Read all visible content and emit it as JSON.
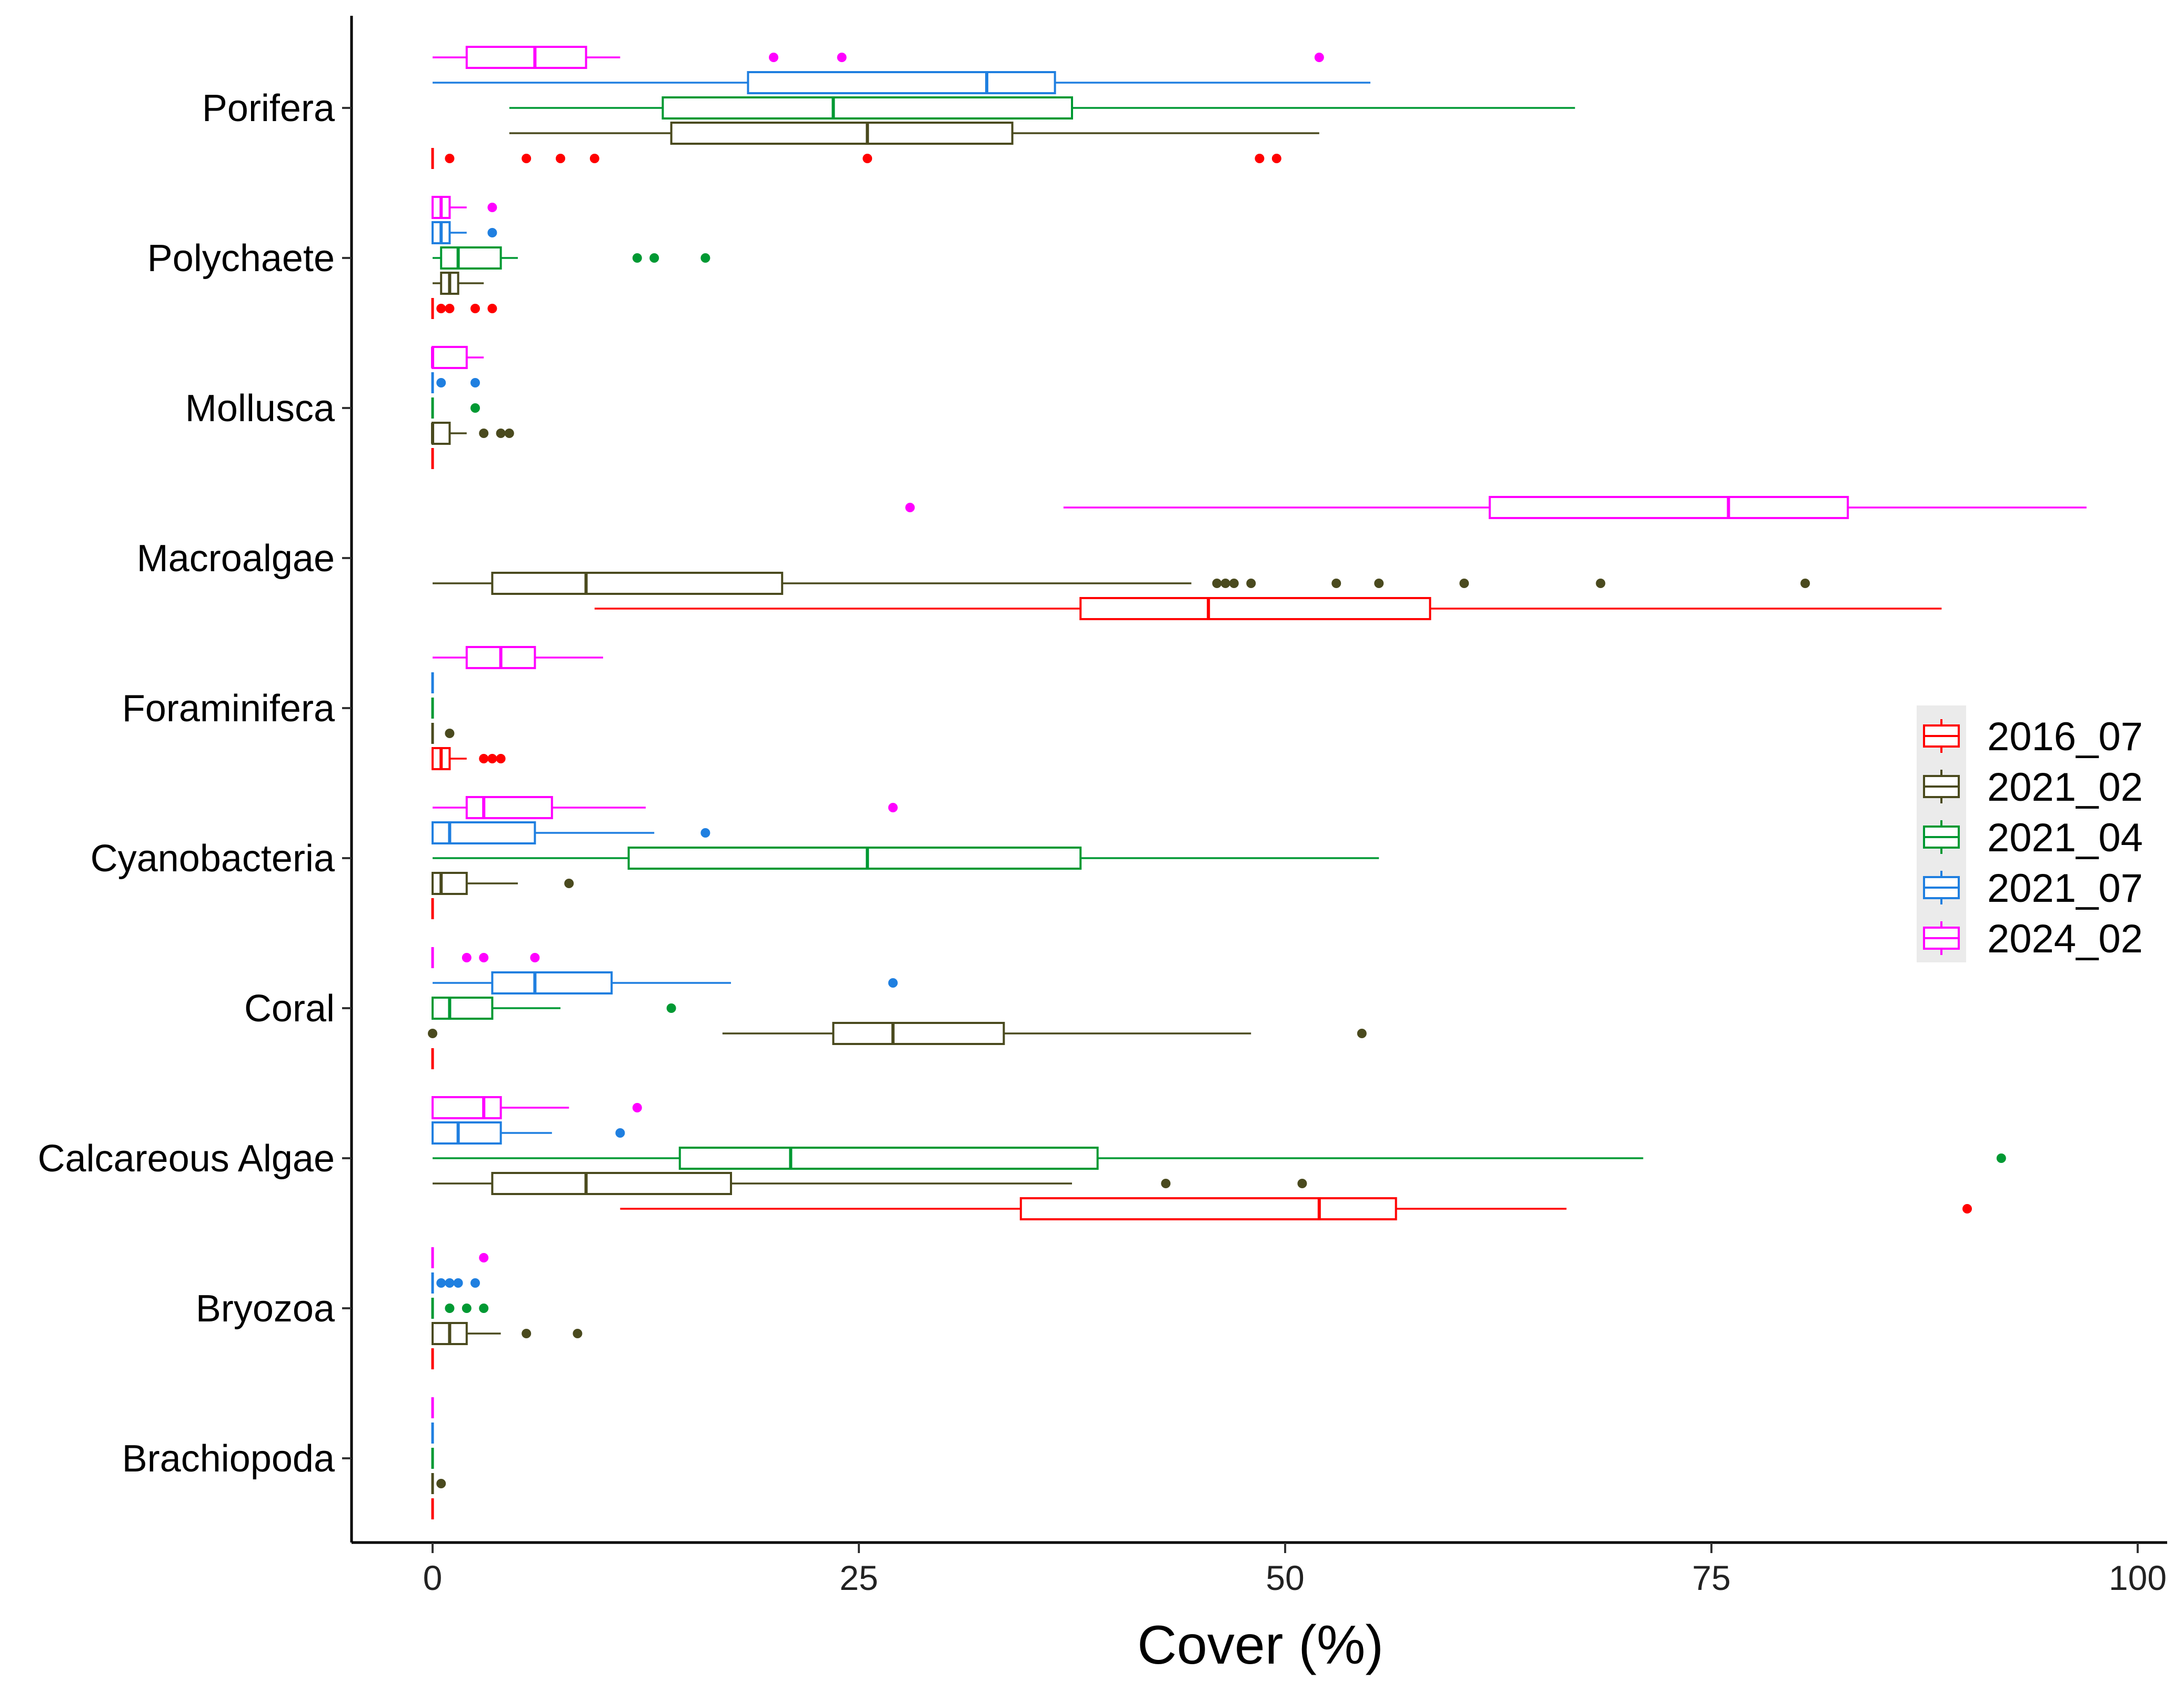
{
  "chart_data": {
    "type": "boxplot",
    "orientation": "horizontal",
    "xlabel": "Cover (%)",
    "xlim": [
      -4.6,
      101.3
    ],
    "xticks": [
      0,
      25,
      50,
      75,
      100
    ],
    "categories": [
      "Porifera",
      "Polychaete",
      "Mollusca",
      "Macroalgae",
      "Foraminifera",
      "Cyanobacteria",
      "Coral",
      "Calcareous Algae",
      "Bryozoa",
      "Brachiopoda"
    ],
    "legend": {
      "position": "right",
      "title": ""
    },
    "series": [
      {
        "name": "2016_07",
        "color": "#ff0000",
        "boxes": [
          {
            "category": "Porifera",
            "min": 0,
            "q1": 0,
            "median": 0,
            "q3": 0,
            "max": 0,
            "outliers": [
              1,
              5.5,
              7.5,
              9.5,
              25.5,
              48.5,
              49.5
            ]
          },
          {
            "category": "Polychaete",
            "min": 0,
            "q1": 0,
            "median": 0,
            "q3": 0,
            "max": 0,
            "outliers": [
              0.5,
              1,
              2.5,
              3.5
            ]
          },
          {
            "category": "Mollusca",
            "min": 0,
            "q1": 0,
            "median": 0,
            "q3": 0,
            "max": 0,
            "outliers": []
          },
          {
            "category": "Macroalgae",
            "min": 9.5,
            "q1": 38,
            "median": 45.5,
            "q3": 58.5,
            "max": 88.5,
            "outliers": []
          },
          {
            "category": "Foraminifera",
            "min": 0,
            "q1": 0,
            "median": 0.5,
            "q3": 1,
            "max": 2,
            "outliers": [
              3,
              3.5,
              4
            ]
          },
          {
            "category": "Cyanobacteria",
            "min": 0,
            "q1": 0,
            "median": 0,
            "q3": 0,
            "max": 0,
            "outliers": []
          },
          {
            "category": "Coral",
            "min": 0,
            "q1": 0,
            "median": 0,
            "q3": 0,
            "max": 0,
            "outliers": []
          },
          {
            "category": "Calcareous Algae",
            "min": 11,
            "q1": 34.5,
            "median": 52,
            "q3": 56.5,
            "max": 66.5,
            "outliers": [
              90
            ]
          },
          {
            "category": "Bryozoa",
            "min": 0,
            "q1": 0,
            "median": 0,
            "q3": 0,
            "max": 0,
            "outliers": []
          },
          {
            "category": "Brachiopoda",
            "min": 0,
            "q1": 0,
            "median": 0,
            "q3": 0,
            "max": 0,
            "outliers": []
          }
        ]
      },
      {
        "name": "2021_02",
        "color": "#4a4a1e",
        "boxes": [
          {
            "category": "Porifera",
            "min": 4.5,
            "q1": 14,
            "median": 25.5,
            "q3": 34,
            "max": 52,
            "outliers": []
          },
          {
            "category": "Polychaete",
            "min": 0,
            "q1": 0.5,
            "median": 1,
            "q3": 1.5,
            "max": 3,
            "outliers": []
          },
          {
            "category": "Mollusca",
            "min": 0,
            "q1": 0,
            "median": 0,
            "q3": 1,
            "max": 2,
            "outliers": [
              3,
              4,
              4.5
            ]
          },
          {
            "category": "Macroalgae",
            "min": 0,
            "q1": 3.5,
            "median": 9,
            "q3": 20.5,
            "max": 44.5,
            "outliers": [
              46,
              46.5,
              47,
              48,
              53,
              55.5,
              60.5,
              68.5,
              80.5
            ]
          },
          {
            "category": "Foraminifera",
            "min": 0,
            "q1": 0,
            "median": 0,
            "q3": 0,
            "max": 0,
            "outliers": [
              1
            ]
          },
          {
            "category": "Cyanobacteria",
            "min": 0,
            "q1": 0,
            "median": 0.5,
            "q3": 2,
            "max": 5,
            "outliers": [
              8
            ]
          },
          {
            "category": "Coral",
            "min": 17,
            "q1": 23.5,
            "median": 27,
            "q3": 33.5,
            "max": 48,
            "outliers": [
              0,
              54.5
            ]
          },
          {
            "category": "Calcareous Algae",
            "min": 0,
            "q1": 3.5,
            "median": 9,
            "q3": 17.5,
            "max": 37.5,
            "outliers": [
              43,
              51
            ]
          },
          {
            "category": "Bryozoa",
            "min": 0,
            "q1": 0,
            "median": 1,
            "q3": 2,
            "max": 4,
            "outliers": [
              5.5,
              8.5
            ]
          },
          {
            "category": "Brachiopoda",
            "min": 0,
            "q1": 0,
            "median": 0,
            "q3": 0,
            "max": 0,
            "outliers": [
              0.5
            ]
          }
        ]
      },
      {
        "name": "2021_04",
        "color": "#009933",
        "boxes": [
          {
            "category": "Porifera",
            "min": 4.5,
            "q1": 13.5,
            "median": 23.5,
            "q3": 37.5,
            "max": 67,
            "outliers": []
          },
          {
            "category": "Polychaete",
            "min": 0,
            "q1": 0.5,
            "median": 1.5,
            "q3": 4,
            "max": 5,
            "outliers": [
              12,
              13,
              16
            ]
          },
          {
            "category": "Mollusca",
            "min": 0,
            "q1": 0,
            "median": 0,
            "q3": 0,
            "max": 0,
            "outliers": [
              2.5
            ]
          },
          {
            "category": "Foraminifera",
            "min": 0,
            "q1": 0,
            "median": 0,
            "q3": 0,
            "max": 0,
            "outliers": []
          },
          {
            "category": "Cyanobacteria",
            "min": 0,
            "q1": 11.5,
            "median": 25.5,
            "q3": 38,
            "max": 55.5,
            "outliers": []
          },
          {
            "category": "Coral",
            "min": 0,
            "q1": 0,
            "median": 1,
            "q3": 3.5,
            "max": 7.5,
            "outliers": [
              14
            ]
          },
          {
            "category": "Calcareous Algae",
            "min": 0,
            "q1": 14.5,
            "median": 21,
            "q3": 39,
            "max": 71,
            "outliers": [
              92
            ]
          },
          {
            "category": "Bryozoa",
            "min": 0,
            "q1": 0,
            "median": 0,
            "q3": 0,
            "max": 0,
            "outliers": [
              1,
              2,
              3
            ]
          },
          {
            "category": "Brachiopoda",
            "min": 0,
            "q1": 0,
            "median": 0,
            "q3": 0,
            "max": 0,
            "outliers": []
          }
        ]
      },
      {
        "name": "2021_07",
        "color": "#1f7fe0",
        "boxes": [
          {
            "category": "Porifera",
            "min": 0,
            "q1": 18.5,
            "median": 32.5,
            "q3": 36.5,
            "max": 55,
            "outliers": []
          },
          {
            "category": "Polychaete",
            "min": 0,
            "q1": 0,
            "median": 0.5,
            "q3": 1,
            "max": 2,
            "outliers": [
              3.5
            ]
          },
          {
            "category": "Mollusca",
            "min": 0,
            "q1": 0,
            "median": 0,
            "q3": 0,
            "max": 0,
            "outliers": [
              0.5,
              2.5
            ]
          },
          {
            "category": "Foraminifera",
            "min": 0,
            "q1": 0,
            "median": 0,
            "q3": 0,
            "max": 0,
            "outliers": []
          },
          {
            "category": "Cyanobacteria",
            "min": 0,
            "q1": 0,
            "median": 1,
            "q3": 6,
            "max": 13,
            "outliers": [
              16
            ]
          },
          {
            "category": "Coral",
            "min": 0,
            "q1": 3.5,
            "median": 6,
            "q3": 10.5,
            "max": 17.5,
            "outliers": [
              27
            ]
          },
          {
            "category": "Calcareous Algae",
            "min": 0,
            "q1": 0,
            "median": 1.5,
            "q3": 4,
            "max": 7,
            "outliers": [
              11
            ]
          },
          {
            "category": "Bryozoa",
            "min": 0,
            "q1": 0,
            "median": 0,
            "q3": 0,
            "max": 0,
            "outliers": [
              0.5,
              1,
              1.5,
              2.5
            ]
          },
          {
            "category": "Brachiopoda",
            "min": 0,
            "q1": 0,
            "median": 0,
            "q3": 0,
            "max": 0,
            "outliers": []
          }
        ]
      },
      {
        "name": "2024_02",
        "color": "#ff00ff",
        "boxes": [
          {
            "category": "Porifera",
            "min": 0,
            "q1": 2,
            "median": 6,
            "q3": 9,
            "max": 11,
            "outliers": [
              20,
              24,
              52
            ]
          },
          {
            "category": "Polychaete",
            "min": 0,
            "q1": 0,
            "median": 0.5,
            "q3": 1,
            "max": 2,
            "outliers": [
              3.5
            ]
          },
          {
            "category": "Mollusca",
            "min": 0,
            "q1": 0,
            "median": 0,
            "q3": 2,
            "max": 3,
            "outliers": []
          },
          {
            "category": "Macroalgae",
            "min": 37,
            "q1": 62,
            "median": 76,
            "q3": 83,
            "max": 97,
            "outliers": [
              28
            ]
          },
          {
            "category": "Foraminifera",
            "min": 0,
            "q1": 2,
            "median": 4,
            "q3": 6,
            "max": 10,
            "outliers": []
          },
          {
            "category": "Cyanobacteria",
            "min": 0,
            "q1": 2,
            "median": 3,
            "q3": 7,
            "max": 12.5,
            "outliers": [
              27
            ]
          },
          {
            "category": "Coral",
            "min": 0,
            "q1": 0,
            "median": 0,
            "q3": 0,
            "max": 0,
            "outliers": [
              2,
              3,
              6
            ]
          },
          {
            "category": "Calcareous Algae",
            "min": 0,
            "q1": 0,
            "median": 3,
            "q3": 4,
            "max": 8,
            "outliers": [
              12
            ]
          },
          {
            "category": "Bryozoa",
            "min": 0,
            "q1": 0,
            "median": 0,
            "q3": 0,
            "max": 0,
            "outliers": [
              3
            ]
          },
          {
            "category": "Brachiopoda",
            "min": 0,
            "q1": 0,
            "median": 0,
            "q3": 0,
            "max": 0,
            "outliers": []
          }
        ]
      }
    ]
  }
}
